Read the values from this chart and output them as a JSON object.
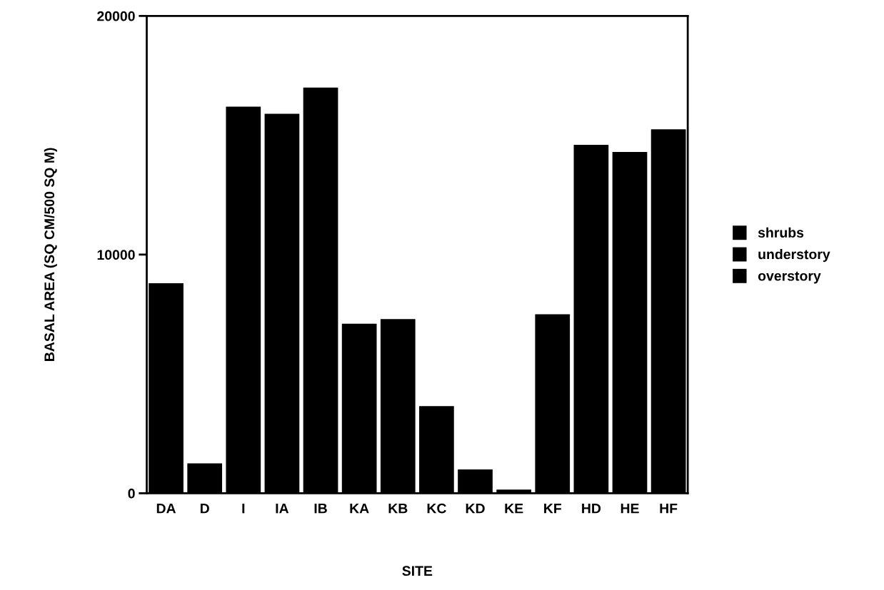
{
  "chart_data": {
    "type": "bar",
    "xlabel": "SITE",
    "ylabel": "BASAL AREA (SQ CM/500 SQ M)",
    "categories": [
      "DA",
      "D",
      "I",
      "IA",
      "IB",
      "KA",
      "KB",
      "KC",
      "KD",
      "KE",
      "KF",
      "HD",
      "HE",
      "HF"
    ],
    "series": [
      {
        "name": "shrubs",
        "color": "#000000",
        "values": [
          null,
          null,
          null,
          null,
          null,
          null,
          null,
          null,
          null,
          null,
          null,
          null,
          null,
          null
        ]
      },
      {
        "name": "understory",
        "color": "#000000",
        "values": [
          null,
          null,
          null,
          null,
          null,
          null,
          null,
          null,
          null,
          null,
          null,
          null,
          null,
          null
        ]
      },
      {
        "name": "overstory",
        "color": "#000000",
        "values": [
          8800,
          1250,
          16200,
          15900,
          17000,
          7100,
          7300,
          3650,
          1000,
          150,
          7500,
          14600,
          14300,
          15250
        ]
      }
    ],
    "ylim": [
      0,
      20000
    ],
    "yticks": [
      0,
      10000,
      20000
    ],
    "grid": false,
    "legend": "right"
  }
}
